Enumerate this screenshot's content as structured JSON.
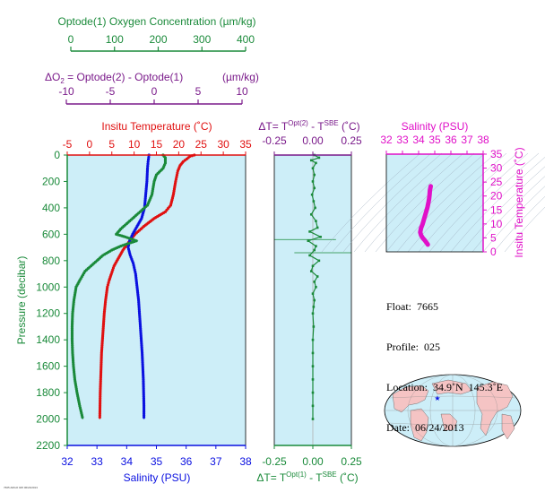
{
  "colors": {
    "green": "#1a8a3a",
    "purple": "#7a1a8a",
    "red": "#e01010",
    "blue": "#0a10e0",
    "magenta": "#e010c8",
    "panel_bg": "#cdeef8"
  },
  "header": {
    "oxygen_axis": {
      "label": "Optode(1) Oxygen Concentration (µm/kg)",
      "ticks": [
        "0",
        "100",
        "200",
        "300",
        "400"
      ]
    },
    "delta_o2_axis": {
      "label_left": "ΔO",
      "label_sub": "2",
      "label_right": " = Optode(2) - Optode(1)",
      "label_units": "(µm/kg)",
      "ticks": [
        "-10",
        "-5",
        "0",
        "5",
        "10"
      ]
    }
  },
  "info": {
    "float": "Float:  7665",
    "profile": "Profile:  025",
    "location": "Location:  34.9˚N  145.3˚E",
    "date": "Date:  06/24/2013"
  },
  "tiny_text": "7665 ARGO 025 06/24/2013",
  "chart_data": [
    {
      "type": "line",
      "panel": "main profile",
      "yaxis": {
        "label": "Pressure (decibar)",
        "ticks": [
          0,
          200,
          400,
          600,
          800,
          1000,
          1200,
          1400,
          1600,
          1800,
          2000,
          2200
        ],
        "lim": [
          2200,
          0
        ]
      },
      "temperature_axis": {
        "label": "Insitu Temperature (˚C)",
        "ticks": [
          "-5",
          "0",
          "5",
          "10",
          "15",
          "20",
          "25",
          "30",
          "35"
        ],
        "lim": [
          -5,
          35
        ]
      },
      "salinity_axis": {
        "label": "Salinity (PSU)",
        "ticks": [
          "32",
          "33",
          "34",
          "35",
          "36",
          "37",
          "38"
        ],
        "lim": [
          32,
          38
        ]
      },
      "oxygen_lim": [
        0,
        400
      ],
      "series": [
        {
          "name": "Insitu Temperature",
          "color": "red",
          "marker": "line+points",
          "points": [
            [
              23.5,
              0
            ],
            [
              22.5,
              10
            ],
            [
              21.8,
              30
            ],
            [
              21,
              50
            ],
            [
              20.3,
              80
            ],
            [
              19.8,
              120
            ],
            [
              19.3,
              200
            ],
            [
              18.8,
              300
            ],
            [
              18.2,
              380
            ],
            [
              17,
              430
            ],
            [
              14.5,
              480
            ],
            [
              12.2,
              540
            ],
            [
              10.2,
              600
            ],
            [
              8.8,
              660
            ],
            [
              7.5,
              720
            ],
            [
              6.5,
              780
            ],
            [
              5.5,
              840
            ],
            [
              4.9,
              900
            ],
            [
              4.4,
              950
            ],
            [
              4,
              1000
            ],
            [
              3.6,
              1100
            ],
            [
              3.3,
              1200
            ],
            [
              3.1,
              1300
            ],
            [
              2.9,
              1400
            ],
            [
              2.7,
              1500
            ],
            [
              2.6,
              1600
            ],
            [
              2.5,
              1700
            ],
            [
              2.4,
              1800
            ],
            [
              2.35,
              1900
            ],
            [
              2.3,
              2000
            ]
          ]
        },
        {
          "name": "Salinity",
          "color": "blue",
          "marker": "line+points",
          "points": [
            [
              34.75,
              0
            ],
            [
              34.72,
              50
            ],
            [
              34.7,
              100
            ],
            [
              34.68,
              200
            ],
            [
              34.64,
              300
            ],
            [
              34.6,
              400
            ],
            [
              34.5,
              480
            ],
            [
              34.35,
              540
            ],
            [
              34.2,
              600
            ],
            [
              34.1,
              650
            ],
            [
              34.05,
              700
            ],
            [
              34.12,
              760
            ],
            [
              34.22,
              820
            ],
            [
              34.3,
              900
            ],
            [
              34.35,
              1000
            ],
            [
              34.4,
              1100
            ],
            [
              34.43,
              1200
            ],
            [
              34.46,
              1300
            ],
            [
              34.49,
              1400
            ],
            [
              34.52,
              1500
            ],
            [
              34.54,
              1600
            ],
            [
              34.56,
              1700
            ],
            [
              34.57,
              1800
            ],
            [
              34.58,
              1900
            ],
            [
              34.58,
              2000
            ]
          ]
        },
        {
          "name": "Optode(1) Oxygen Concentration",
          "color": "green",
          "marker": "line+points",
          "points": [
            [
              215,
              0
            ],
            [
              220,
              20
            ],
            [
              220,
              60
            ],
            [
              215,
              100
            ],
            [
              200,
              150
            ],
            [
              195,
              200
            ],
            [
              190,
              300
            ],
            [
              180,
              380
            ],
            [
              160,
              440
            ],
            [
              140,
              500
            ],
            [
              120,
              560
            ],
            [
              110,
              600
            ],
            [
              130,
              620
            ],
            [
              155,
              650
            ],
            [
              120,
              690
            ],
            [
              100,
              720
            ],
            [
              80,
              760
            ],
            [
              60,
              820
            ],
            [
              40,
              880
            ],
            [
              28,
              950
            ],
            [
              20,
              1000
            ],
            [
              15,
              1100
            ],
            [
              12,
              1200
            ],
            [
              11,
              1300
            ],
            [
              11,
              1400
            ],
            [
              12,
              1500
            ],
            [
              14,
              1600
            ],
            [
              17,
              1700
            ],
            [
              22,
              1800
            ],
            [
              28,
              1900
            ],
            [
              35,
              2000
            ]
          ]
        }
      ]
    },
    {
      "type": "scatter",
      "panel": "temperature difference",
      "top_axis": {
        "label_pre": "ΔT= T",
        "label_sup": "Opt(2)",
        "label_mid": " - T",
        "label_sup2": "SBE",
        "label_post": " (˚C)",
        "ticks": [
          "-0.25",
          "0.00",
          "0.25"
        ],
        "lim": [
          -0.25,
          0.25
        ]
      },
      "bottom_axis": {
        "label_pre": "ΔT= T",
        "label_sup": "Opt(1)",
        "label_mid": " - T",
        "label_sup2": "SBE",
        "label_post": " (˚C)",
        "ticks": [
          "-0.25",
          "0.00",
          "0.25"
        ],
        "lim": [
          -0.25,
          0.25
        ]
      },
      "ylim": [
        2200,
        0
      ],
      "series": [
        {
          "name": "ΔT Opt(1)",
          "color": "green",
          "points": [
            [
              0.01,
              0
            ],
            [
              0.04,
              20
            ],
            [
              -0.01,
              40
            ],
            [
              0.02,
              60
            ],
            [
              0,
              100
            ],
            [
              0.01,
              150
            ],
            [
              0,
              200
            ],
            [
              0.01,
              250
            ],
            [
              -0.005,
              300
            ],
            [
              0.005,
              350
            ],
            [
              0.015,
              400
            ],
            [
              -0.01,
              450
            ],
            [
              0.02,
              500
            ],
            [
              0.03,
              550
            ],
            [
              -0.02,
              580
            ],
            [
              0.05,
              620
            ],
            [
              -0.03,
              650
            ],
            [
              0.02,
              690
            ],
            [
              0.01,
              720
            ],
            [
              -0.02,
              760
            ],
            [
              0.04,
              800
            ],
            [
              0,
              840
            ],
            [
              -0.01,
              880
            ],
            [
              0.03,
              920
            ],
            [
              0.01,
              960
            ],
            [
              0.02,
              1000
            ],
            [
              0,
              1050
            ],
            [
              0.01,
              1100
            ],
            [
              0.005,
              1150
            ],
            [
              0,
              1200
            ],
            [
              0.005,
              1300
            ],
            [
              0,
              1400
            ],
            [
              0,
              1500
            ],
            [
              0,
              1600
            ],
            [
              0,
              1700
            ],
            [
              0,
              1800
            ],
            [
              0,
              1900
            ],
            [
              0,
              2000
            ]
          ]
        }
      ],
      "spikes": [
        {
          "pressure": 640,
          "from": -0.25,
          "to": 0.15
        },
        {
          "pressure": 740,
          "from": -0.12,
          "to": 0.25
        }
      ]
    },
    {
      "type": "scatter",
      "panel": "T-S diagram",
      "title": "Salinity (PSU)",
      "xaxis": {
        "ticks": [
          "32",
          "33",
          "34",
          "35",
          "36",
          "37",
          "38"
        ],
        "lim": [
          32,
          38
        ]
      },
      "yaxis": {
        "label": "Insitu Temperature (˚C)",
        "ticks": [
          "0",
          "5",
          "10",
          "15",
          "20",
          "25",
          "30",
          "35"
        ],
        "lim": [
          0,
          35
        ]
      },
      "series": [
        {
          "name": "T-S",
          "color": "magenta",
          "points": [
            [
              34.75,
              23.5
            ],
            [
              34.7,
              22
            ],
            [
              34.68,
              20.5
            ],
            [
              34.65,
              19
            ],
            [
              34.62,
              18
            ],
            [
              34.55,
              16
            ],
            [
              34.45,
              14
            ],
            [
              34.35,
              12
            ],
            [
              34.25,
              10
            ],
            [
              34.15,
              8.5
            ],
            [
              34.1,
              7
            ],
            [
              34.15,
              6
            ],
            [
              34.25,
              5
            ],
            [
              34.4,
              4
            ],
            [
              34.5,
              3.2
            ],
            [
              34.57,
              2.6
            ]
          ]
        }
      ]
    },
    {
      "type": "map",
      "panel": "location map",
      "marker": {
        "lat": 34.9,
        "lon": 145.3
      }
    }
  ]
}
